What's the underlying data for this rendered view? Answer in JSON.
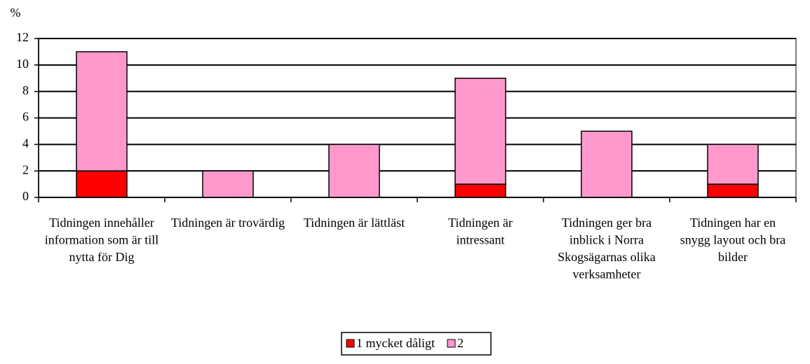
{
  "chart_data": {
    "type": "stacked-bar",
    "y_label": "%",
    "categories": [
      "Tidningen innehåller information som är till nytta för Dig",
      "Tidningen är trovärdig",
      "Tidningen är lättläst",
      "Tidningen är intressant",
      "Tidningen ger bra inblick i Norra Skogsägarnas olika verksamheter",
      "Tidningen har en snygg layout och bra bilder"
    ],
    "series": [
      {
        "name": "1 mycket dåligt",
        "color": "#ff0000",
        "values": [
          2,
          0,
          0,
          1,
          0,
          1
        ]
      },
      {
        "name": "2",
        "color": "#ff99cc",
        "values": [
          9,
          2,
          4,
          8,
          5,
          3
        ]
      }
    ],
    "ylim": [
      0,
      12
    ],
    "yticks": [
      0,
      2,
      4,
      6,
      8,
      10,
      12
    ],
    "grid": true,
    "legend": "bottom"
  }
}
